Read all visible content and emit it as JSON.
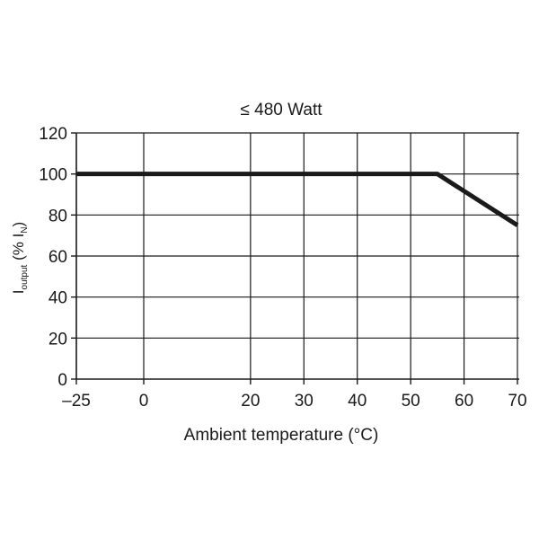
{
  "chart_data": {
    "type": "line",
    "title": "≤ 480 Watt",
    "xlabel": "Ambient temperature (°C)",
    "ylabel": {
      "main": "I",
      "main_sub": "output",
      "rest": " (% I",
      "rest_sub": "N",
      "close": ")"
    },
    "x_ticks": [
      -25,
      0,
      20,
      30,
      40,
      50,
      60,
      70
    ],
    "x_tick_labels": [
      "–25",
      "0",
      "20",
      "30",
      "40",
      "50",
      "60",
      "70"
    ],
    "y_ticks": [
      0,
      20,
      40,
      60,
      80,
      100,
      120
    ],
    "y_tick_labels": [
      "0",
      "20",
      "40",
      "60",
      "80",
      "100",
      "120"
    ],
    "xlim": [
      -25,
      70
    ],
    "ylim": [
      0,
      120
    ],
    "grid": true,
    "series": [
      {
        "points": [
          {
            "x": -25,
            "y": 100
          },
          {
            "x": 55,
            "y": 100
          },
          {
            "x": 70,
            "y": 75
          }
        ]
      }
    ],
    "colors": {
      "line": "#1a1a1a",
      "grid": "#1a1a1a"
    }
  }
}
